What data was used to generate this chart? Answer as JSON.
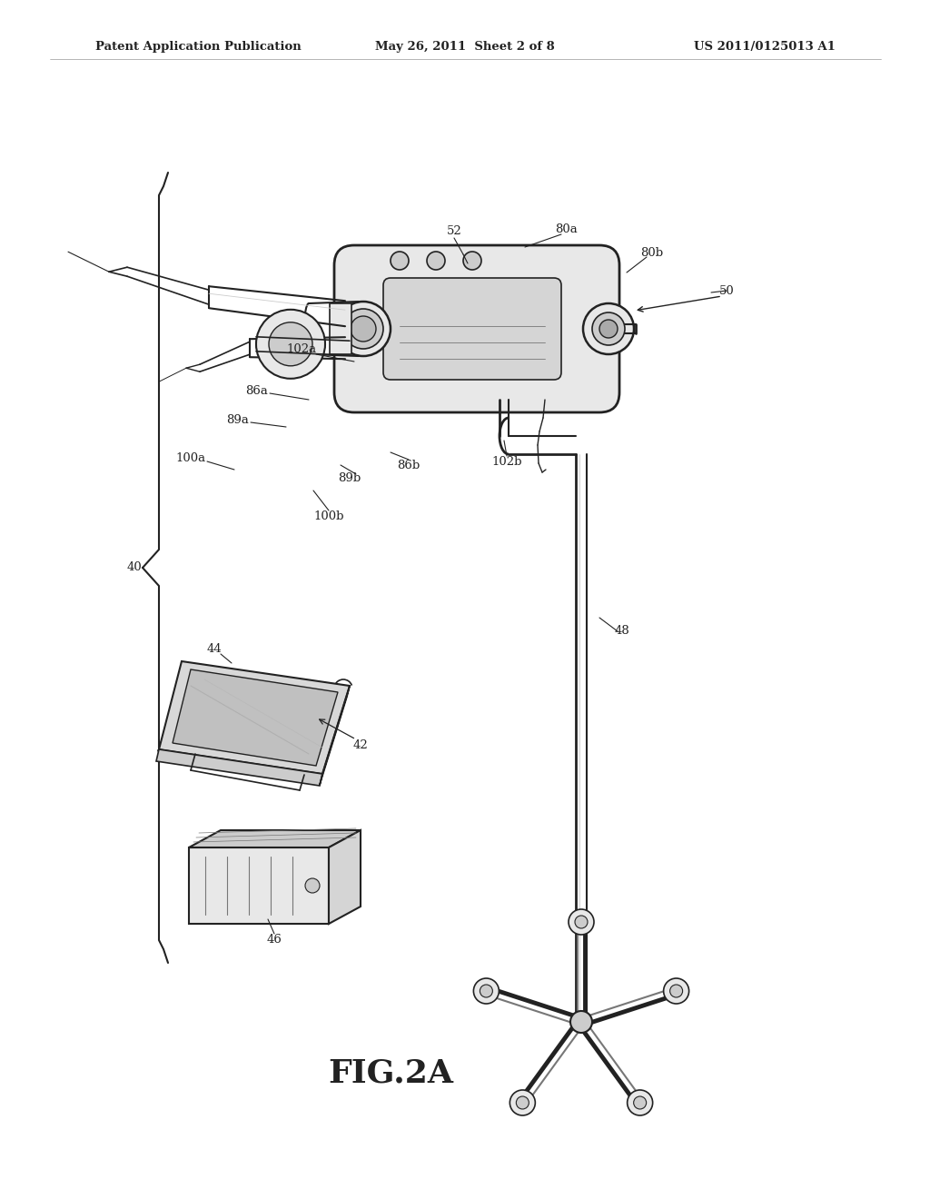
{
  "bg_color": "#ffffff",
  "header_left": "Patent Application Publication",
  "header_center": "May 26, 2011  Sheet 2 of 8",
  "header_right": "US 2011/0125013 A1",
  "figure_label": "FIG.2A",
  "header_fontsize": 9.5,
  "label_fontsize": 9.5,
  "fig_label_fontsize": 26,
  "dark": "#222222",
  "mid": "#777777",
  "light": "#cccccc",
  "very_light": "#e8e8e8"
}
